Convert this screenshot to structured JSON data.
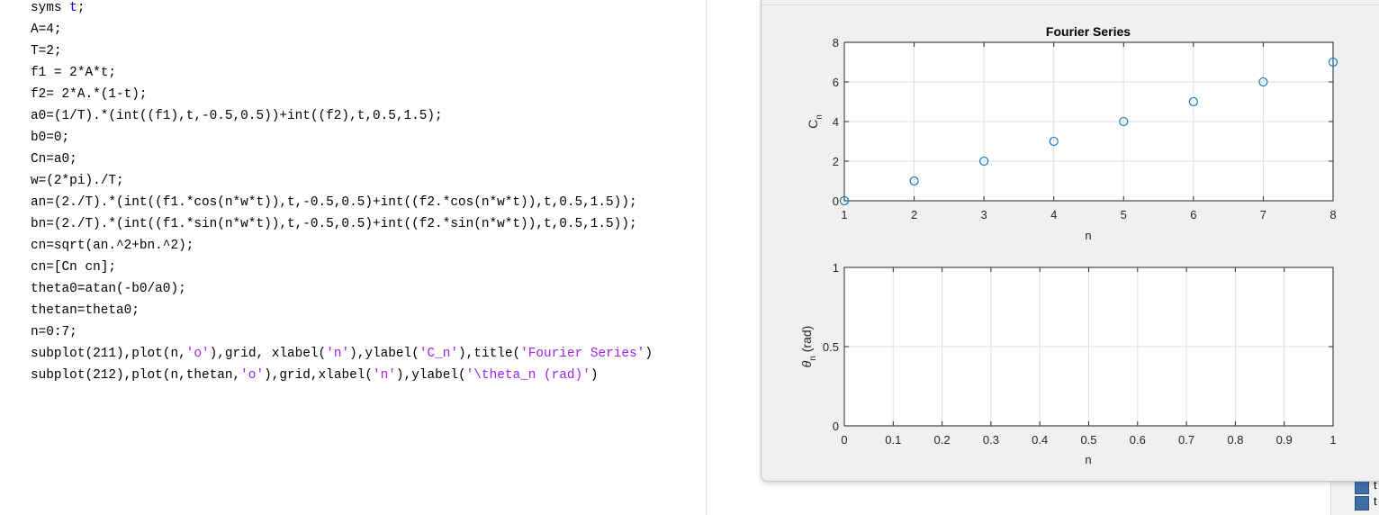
{
  "editor": {
    "lines": [
      [
        {
          "t": "syms "
        },
        {
          "t": "t",
          "c": "kw"
        },
        {
          "t": ";"
        }
      ],
      [
        {
          "t": "A=4;"
        }
      ],
      [
        {
          "t": "T=2;"
        }
      ],
      [
        {
          "t": "f1 = 2*A*t;"
        }
      ],
      [
        {
          "t": "f2= 2*A.*(1-t);"
        }
      ],
      [
        {
          "t": "a0=(1/T).*(int((f1),t,-0.5,0.5))+int((f2),t,0.5,1.5);"
        }
      ],
      [
        {
          "t": "b0=0;"
        }
      ],
      [
        {
          "t": "Cn=a0;"
        }
      ],
      [
        {
          "t": "w=(2*pi)./T;"
        }
      ],
      [
        {
          "t": "an=(2./T).*(int((f1.*cos(n*w*t)),t,-0.5,0.5)+int((f2.*cos(n*w*t)),t,0.5,1.5));"
        }
      ],
      [
        {
          "t": "bn=(2./T).*(int((f1.*sin(n*w*t)),t,-0.5,0.5)+int((f2.*sin(n*w*t)),t,0.5,1.5));"
        }
      ],
      [
        {
          "t": "cn=sqrt(an.^2+bn.^2);"
        }
      ],
      [
        {
          "t": "cn=[Cn cn];"
        }
      ],
      [
        {
          "t": "theta0=atan(-b0/a0);"
        }
      ],
      [
        {
          "t": "thetan=theta0;"
        }
      ],
      [
        {
          "t": "n=0:7;"
        }
      ],
      [
        {
          "t": "subplot(211),plot(n,"
        },
        {
          "t": "'o'",
          "c": "str"
        },
        {
          "t": "),grid, xlabel("
        },
        {
          "t": "'n'",
          "c": "str"
        },
        {
          "t": "),ylabel("
        },
        {
          "t": "'C_n'",
          "c": "str"
        },
        {
          "t": "),title("
        },
        {
          "t": "'Fourier Series'",
          "c": "str"
        },
        {
          "t": ")"
        }
      ],
      [
        {
          "t": "subplot(212),plot(n,thetan,"
        },
        {
          "t": "'o'",
          "c": "str"
        },
        {
          "t": "),grid,xlabel("
        },
        {
          "t": "'n'",
          "c": "str"
        },
        {
          "t": "),ylabel("
        },
        {
          "t": "'\\theta_n (rad)'",
          "c": "str"
        },
        {
          "t": ")"
        }
      ]
    ]
  },
  "workspace": {
    "items": [
      "t",
      "t"
    ]
  },
  "colors": {
    "marker": "#0072bd",
    "grid": "#dfdfdf",
    "axis": "#262626",
    "string": "#a020f0",
    "keyword": "#0000ff"
  },
  "chart_data": [
    {
      "type": "scatter",
      "title": "Fourier Series",
      "xlabel": "n",
      "ylabel_main": "C",
      "ylabel_sub": "n",
      "x": [
        1,
        2,
        3,
        4,
        5,
        6,
        7,
        8
      ],
      "y": [
        0,
        1,
        2,
        3,
        4,
        5,
        6,
        7
      ],
      "xlim": [
        1,
        8
      ],
      "ylim": [
        0,
        8
      ],
      "xticks": [
        "1",
        "2",
        "3",
        "4",
        "5",
        "6",
        "7",
        "8"
      ],
      "yticks": [
        "0",
        "2",
        "4",
        "6",
        "8"
      ],
      "grid": true
    },
    {
      "type": "scatter",
      "title": "",
      "xlabel": "n",
      "ylabel_main": "θ",
      "ylabel_sub": "n",
      "ylabel_rest": " (rad)",
      "x": [],
      "y": [],
      "xlim": [
        0,
        1
      ],
      "ylim": [
        0,
        1
      ],
      "xticks": [
        "0",
        "0.1",
        "0.2",
        "0.3",
        "0.4",
        "0.5",
        "0.6",
        "0.7",
        "0.8",
        "0.9",
        "1"
      ],
      "yticks": [
        "0",
        "0.5",
        "1"
      ],
      "grid": true
    }
  ]
}
